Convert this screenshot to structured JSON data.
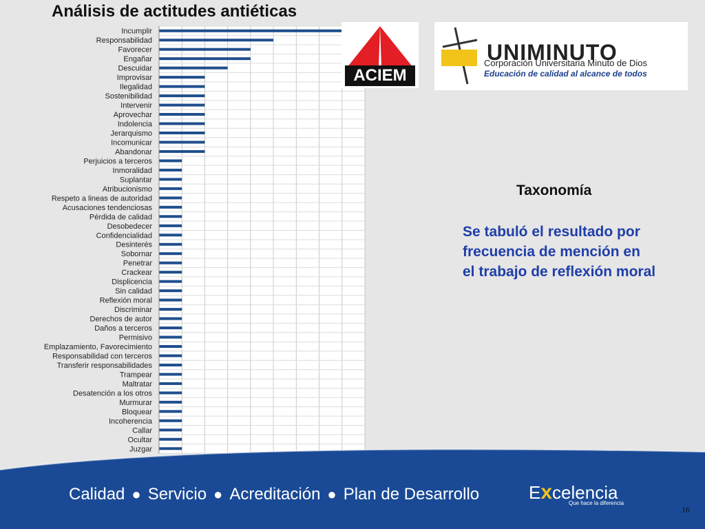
{
  "slide": {
    "title": "Análisis de actitudes antiéticas",
    "taxonomy_heading": "Taxonomía",
    "description_lines": [
      "Se tabuló el resultado por",
      "frecuencia de mención en",
      "el trabajo de reflexión moral"
    ],
    "page_number": "16"
  },
  "logos": {
    "aciem": "ACIEM",
    "uniminuto_name": "UNIMINUTO",
    "uniminuto_subtitle": "Corporación Universitaria Minuto de Dios",
    "uniminuto_slogan": "Educación de calidad al alcance de todos"
  },
  "footer": {
    "items": [
      "Calidad",
      "Servicio",
      "Acreditación",
      "Plan de Desarrollo"
    ],
    "brand_prefix": "E",
    "brand_x": "x",
    "brand_suffix": "celencia",
    "brand_tagline": "Que hace la diferencia"
  },
  "colors": {
    "bar": "#1f4e8c",
    "footer": "#1a4a96",
    "accent_yellow": "#f2c319",
    "aciem_red": "#e31e24",
    "description_blue": "#1f3ea8"
  },
  "chart_data": {
    "type": "bar",
    "orientation": "horizontal",
    "title": "Análisis de actitudes antiéticas",
    "xlim": [
      0,
      9
    ],
    "xticks": [
      "0",
      "1",
      "2",
      "3",
      "4",
      "5",
      "6",
      "7",
      "8",
      "9"
    ],
    "grid": true,
    "categories": [
      "Incumplir",
      "Responsabilidad",
      "Favorecer",
      "Engañar",
      "Descuidar",
      "Improvisar",
      "Ilegalidad",
      "Sostenibilidad",
      "Intervenir",
      "Aprovechar",
      "Indolencia",
      "Jerarquismo",
      "Incomunicar",
      "Abandonar",
      "Perjuicios a terceros",
      "Inmoralidad",
      "Suplantar",
      "Atribucionismo",
      "Respeto a lineas de autoridad",
      "Acusaciones tendenciosas",
      "Pérdida de calidad",
      "Desobedecer",
      "Confidencialidad",
      "Desinterés",
      "Sobornar",
      "Penetrar",
      "Crackear",
      "Displicencia",
      "Sin calidad",
      "Reflexión moral",
      "Discriminar",
      "Derechos de autor",
      "Daños a terceros",
      "Permisivo",
      "Emplazamiento, Favorecimiento",
      "Responsabilidad con terceros",
      "Transferir responsabilidades",
      "Trampear",
      "Maltratar",
      "Desatención a los otros",
      "Murmurar",
      "Bloquear",
      "Incoherencia",
      "Callar",
      "Ocultar",
      "Juzgar"
    ],
    "values": [
      8,
      5,
      4,
      4,
      3,
      2,
      2,
      2,
      2,
      2,
      2,
      2,
      2,
      2,
      1,
      1,
      1,
      1,
      1,
      1,
      1,
      1,
      1,
      1,
      1,
      1,
      1,
      1,
      1,
      1,
      1,
      1,
      1,
      1,
      1,
      1,
      1,
      1,
      1,
      1,
      1,
      1,
      1,
      1,
      1,
      1
    ]
  }
}
